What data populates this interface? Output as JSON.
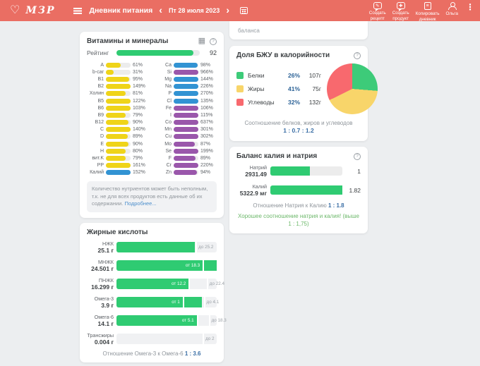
{
  "header": {
    "brand": "МЗР",
    "title": "Дневник питания",
    "date": "Пт 28 июля 2023",
    "actions": [
      {
        "line1": "Создать",
        "line2": "рецепт"
      },
      {
        "line1": "Создать",
        "line2": "продукт"
      },
      {
        "line1": "Копировать",
        "line2": "дневник"
      }
    ],
    "user_name": "Ольга"
  },
  "colors": {
    "header_bg": "#ea6e63",
    "page_bg": "#eceef0",
    "green": "#2fcb72",
    "yellow": "#efd419",
    "blue": "#3293d3",
    "purple": "#9a57ab",
    "pie_green": "#3dcb79",
    "pie_yellow": "#f8d56a",
    "pie_red": "#f8696e",
    "accent_blue_text": "#3a6ea5"
  },
  "vitamins_card": {
    "title": "Витамины и минералы",
    "rating_label": "Рейтинг",
    "rating_value": "92",
    "rating_fill": 92,
    "left_rows": [
      {
        "label": "A",
        "pct": 61,
        "color": "#efd419"
      },
      {
        "label": "b-car",
        "pct": 31,
        "color": "#efd419"
      },
      {
        "label": "B1",
        "pct": 95,
        "color": "#efd419"
      },
      {
        "label": "B2",
        "pct": 149,
        "color": "#efd419"
      },
      {
        "label": "Холин",
        "pct": 81,
        "color": "#efd419"
      },
      {
        "label": "B5",
        "pct": 122,
        "color": "#efd419"
      },
      {
        "label": "B6",
        "pct": 103,
        "color": "#efd419"
      },
      {
        "label": "B9",
        "pct": 79,
        "color": "#efd419"
      },
      {
        "label": "B12",
        "pct": 90,
        "color": "#efd419"
      },
      {
        "label": "C",
        "pct": 140,
        "color": "#efd419"
      },
      {
        "label": "D",
        "pct": 89,
        "color": "#efd419"
      },
      {
        "label": "E",
        "pct": 90,
        "color": "#efd419"
      },
      {
        "label": "H",
        "pct": 80,
        "color": "#efd419"
      },
      {
        "label": "вит.K",
        "pct": 79,
        "color": "#efd419"
      },
      {
        "label": "PP",
        "pct": 161,
        "color": "#efd419"
      },
      {
        "label": "Калий",
        "pct": 152,
        "color": "#3293d3"
      }
    ],
    "right_rows": [
      {
        "label": "Ca",
        "pct": 98,
        "color": "#3293d3"
      },
      {
        "label": "Si",
        "pct": 966,
        "color": "#9a57ab"
      },
      {
        "label": "Mg",
        "pct": 144,
        "color": "#3293d3"
      },
      {
        "label": "Na",
        "pct": 226,
        "color": "#3293d3"
      },
      {
        "label": "P",
        "pct": 270,
        "color": "#3293d3"
      },
      {
        "label": "Cl",
        "pct": 135,
        "color": "#3293d3"
      },
      {
        "label": "Fe",
        "pct": 106,
        "color": "#9a57ab"
      },
      {
        "label": "I",
        "pct": 115,
        "color": "#9a57ab"
      },
      {
        "label": "Co",
        "pct": 637,
        "color": "#9a57ab"
      },
      {
        "label": "Mn",
        "pct": 301,
        "color": "#9a57ab"
      },
      {
        "label": "Cu",
        "pct": 302,
        "color": "#9a57ab"
      },
      {
        "label": "Mo",
        "pct": 87,
        "color": "#9a57ab"
      },
      {
        "label": "Se",
        "pct": 199,
        "color": "#9a57ab"
      },
      {
        "label": "F",
        "pct": 89,
        "color": "#9a57ab"
      },
      {
        "label": "Cr",
        "pct": 220,
        "color": "#9a57ab"
      },
      {
        "label": "Zn",
        "pct": 94,
        "color": "#9a57ab"
      }
    ],
    "note_text": "Количество нутриентов может быть неполным, т.к. не для всех продуктов есть данные об их содержании.",
    "note_link": "Подробнее..."
  },
  "fatty_card": {
    "title": "Жирные кислоты",
    "rows": [
      {
        "name": "НЖК",
        "value": "25.1 г",
        "fill": 78,
        "markers": [
          {
            "label": "до 25.2",
            "pos": 79,
            "inside": false
          }
        ]
      },
      {
        "name": "МНЖК",
        "value": "24.501 г",
        "fill": 100,
        "markers": [
          {
            "label": "от 18.3",
            "pos": 86,
            "inside": true
          }
        ]
      },
      {
        "name": "ПНЖК",
        "value": "16.299 г",
        "fill": 72,
        "markers": [
          {
            "label": "от 12.2",
            "pos": 72,
            "inside": true
          },
          {
            "label": "до 22.4",
            "pos": 90,
            "inside": false
          }
        ]
      },
      {
        "name": "Омега-3",
        "value": "3.9 г",
        "fill": 85,
        "markers": [
          {
            "label": "от 1",
            "pos": 66,
            "inside": true
          },
          {
            "label": "до 4.1",
            "pos": 87,
            "inside": false
          }
        ]
      },
      {
        "name": "Омега-6",
        "value": "14.1 г",
        "fill": 80,
        "markers": [
          {
            "label": "от 5.1",
            "pos": 80,
            "inside": true
          },
          {
            "label": "до 18.3",
            "pos": 92,
            "inside": false
          }
        ]
      },
      {
        "name": "Трансжиры",
        "value": "0.004 г",
        "fill": 0,
        "markers": [
          {
            "label": "до 2",
            "pos": 86,
            "inside": false
          }
        ]
      }
    ],
    "footer_label": "Отношение Омега-3 к Омега-6",
    "footer_value": "1 : 3.6"
  },
  "partial_card": {
    "text": "баланса"
  },
  "macro_card": {
    "title": "Доля БЖУ в калорийности",
    "legend": [
      {
        "label": "Белки",
        "pct": 26,
        "grams": "107г",
        "color": "#3dcb79"
      },
      {
        "label": "Жиры",
        "pct": 41,
        "grams": "75г",
        "color": "#f8d56a"
      },
      {
        "label": "Углеводы",
        "pct": 32,
        "grams": "132г",
        "color": "#f8696e"
      }
    ],
    "footer_label": "Соотношение белков, жиров и углеводов",
    "footer_value": "1 : 0.7 : 1.2"
  },
  "balance_card": {
    "title": "Баланс калия и натрия",
    "rows": [
      {
        "name": "Натрий",
        "value": "2931.49",
        "fill": 55,
        "ratio": "1"
      },
      {
        "name": "Калий",
        "value": "5322.9 мг",
        "fill": 100,
        "ratio": "1.82"
      }
    ],
    "footer_label": "Отношение Натрия к Калию",
    "footer_value": "1 : 1.8",
    "note": "Хорошее соотношение натрия и калия! (выше 1 : 1,75)"
  }
}
